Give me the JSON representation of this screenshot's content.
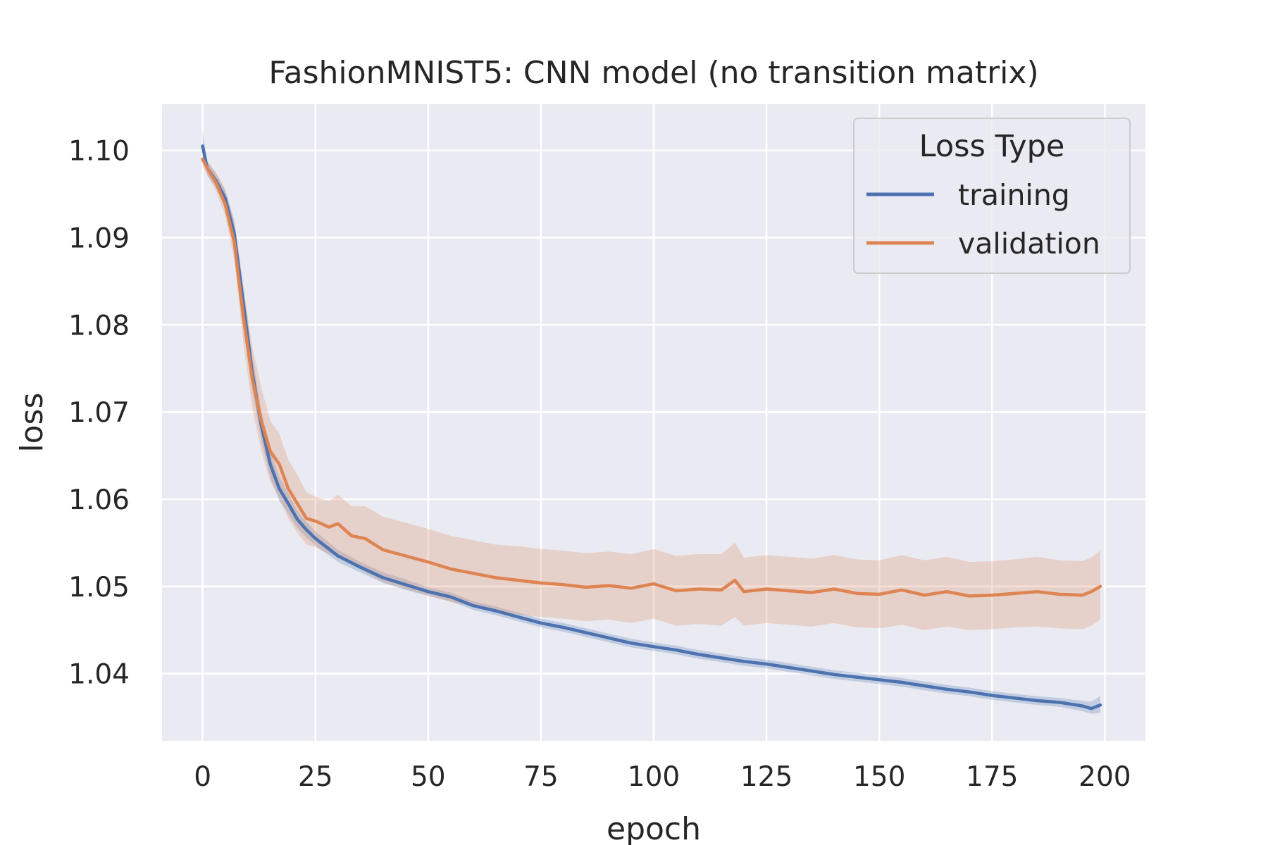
{
  "chart_data": {
    "type": "line",
    "title": "FashionMNIST5: CNN model (no transition matrix)",
    "xlabel": "epoch",
    "ylabel": "loss",
    "xlim": [
      -9,
      209
    ],
    "ylim": [
      1.0323,
      1.1053
    ],
    "xticks": [
      0,
      25,
      50,
      75,
      100,
      125,
      150,
      175,
      200
    ],
    "yticks": [
      1.04,
      1.05,
      1.06,
      1.07,
      1.08,
      1.09,
      1.1
    ],
    "ytick_labels": [
      "1.04",
      "1.05",
      "1.06",
      "1.07",
      "1.08",
      "1.09",
      "1.10"
    ],
    "grid": true,
    "legend": {
      "title": "Loss Type",
      "position": "top-right",
      "entries": [
        "training",
        "validation"
      ]
    },
    "series": [
      {
        "name": "training",
        "color": "#4c72b0",
        "x": [
          0,
          1,
          3,
          5,
          7,
          9,
          11,
          13,
          15,
          17,
          19,
          21,
          23,
          25,
          30,
          35,
          40,
          45,
          50,
          55,
          60,
          65,
          70,
          75,
          80,
          85,
          90,
          95,
          100,
          105,
          110,
          115,
          120,
          125,
          130,
          135,
          140,
          145,
          150,
          155,
          160,
          165,
          170,
          175,
          180,
          185,
          190,
          195,
          197,
          199
        ],
        "y": [
          1.1005,
          1.098,
          1.0965,
          1.0945,
          1.0905,
          1.0825,
          1.0745,
          1.0685,
          1.064,
          1.0612,
          1.0595,
          1.0577,
          1.0565,
          1.0555,
          1.0535,
          1.0522,
          1.051,
          1.0502,
          1.0494,
          1.0488,
          1.0478,
          1.0472,
          1.0465,
          1.0458,
          1.0453,
          1.0447,
          1.0441,
          1.0435,
          1.0431,
          1.0427,
          1.0422,
          1.0418,
          1.0414,
          1.0411,
          1.0407,
          1.0403,
          1.0399,
          1.0396,
          1.0393,
          1.039,
          1.0386,
          1.0382,
          1.0379,
          1.0375,
          1.0372,
          1.0369,
          1.0367,
          1.0363,
          1.036,
          1.0364
        ],
        "band_low": [
          1.0995,
          1.0972,
          1.0957,
          1.0935,
          1.089,
          1.0805,
          1.0725,
          1.0668,
          1.0625,
          1.0598,
          1.0583,
          1.0567,
          1.0556,
          1.0547,
          1.0528,
          1.0516,
          1.0504,
          1.0496,
          1.0489,
          1.0483,
          1.0473,
          1.0467,
          1.046,
          1.0453,
          1.0448,
          1.0442,
          1.0436,
          1.043,
          1.0426,
          1.0422,
          1.0417,
          1.0413,
          1.0409,
          1.0406,
          1.0402,
          1.0398,
          1.0394,
          1.0391,
          1.0388,
          1.0385,
          1.0381,
          1.0377,
          1.0374,
          1.037,
          1.0367,
          1.0364,
          1.0362,
          1.0357,
          1.0354,
          1.0355
        ],
        "band_high": [
          1.1022,
          1.0988,
          1.0973,
          1.0955,
          1.092,
          1.0845,
          1.0765,
          1.0702,
          1.0655,
          1.0626,
          1.0607,
          1.0587,
          1.0574,
          1.0563,
          1.0542,
          1.0528,
          1.0516,
          1.0508,
          1.0499,
          1.0493,
          1.0483,
          1.0477,
          1.047,
          1.0463,
          1.0458,
          1.0452,
          1.0446,
          1.044,
          1.0436,
          1.0432,
          1.0427,
          1.0423,
          1.0419,
          1.0416,
          1.0412,
          1.0408,
          1.0404,
          1.0401,
          1.0398,
          1.0395,
          1.0391,
          1.0387,
          1.0384,
          1.038,
          1.0377,
          1.0374,
          1.0372,
          1.0369,
          1.0368,
          1.0374
        ]
      },
      {
        "name": "validation",
        "color": "#dd8452",
        "x": [
          0,
          1,
          3,
          5,
          7,
          9,
          11,
          13,
          15,
          17,
          19,
          21,
          23,
          25,
          28,
          30,
          33,
          36,
          40,
          45,
          50,
          55,
          60,
          65,
          70,
          75,
          80,
          85,
          90,
          95,
          100,
          105,
          110,
          115,
          118,
          120,
          125,
          130,
          135,
          140,
          145,
          150,
          155,
          160,
          165,
          170,
          175,
          180,
          185,
          190,
          195,
          197,
          199
        ],
        "y": [
          1.099,
          1.098,
          1.0963,
          1.0938,
          1.0895,
          1.081,
          1.0738,
          1.069,
          1.0655,
          1.064,
          1.0612,
          1.0595,
          1.0578,
          1.0575,
          1.0568,
          1.0572,
          1.0558,
          1.0555,
          1.0542,
          1.0535,
          1.0528,
          1.052,
          1.0515,
          1.051,
          1.0507,
          1.0504,
          1.0502,
          1.0499,
          1.0501,
          1.0498,
          1.0503,
          1.0495,
          1.0497,
          1.0496,
          1.0507,
          1.0494,
          1.0497,
          1.0495,
          1.0493,
          1.0497,
          1.0492,
          1.0491,
          1.0496,
          1.049,
          1.0494,
          1.0489,
          1.049,
          1.0492,
          1.0494,
          1.0491,
          1.049,
          1.0494,
          1.05
        ],
        "band_low": [
          1.0982,
          1.0972,
          1.0953,
          1.0925,
          1.0875,
          1.078,
          1.0705,
          1.0655,
          1.062,
          1.0602,
          1.0578,
          1.0562,
          1.0548,
          1.0545,
          1.0537,
          1.0535,
          1.0525,
          1.0517,
          1.0505,
          1.0497,
          1.049,
          1.0482,
          1.0477,
          1.0472,
          1.0468,
          1.0465,
          1.0463,
          1.046,
          1.0462,
          1.0458,
          1.0463,
          1.0455,
          1.0457,
          1.0455,
          1.0465,
          1.0455,
          1.0458,
          1.0456,
          1.0454,
          1.0458,
          1.0453,
          1.0452,
          1.0456,
          1.045,
          1.0454,
          1.045,
          1.0451,
          1.0453,
          1.0454,
          1.0452,
          1.0451,
          1.0455,
          1.0462
        ],
        "band_high": [
          1.0998,
          1.0988,
          1.0975,
          1.0955,
          1.0918,
          1.0845,
          1.0775,
          1.0728,
          1.069,
          1.0675,
          1.0645,
          1.0628,
          1.0608,
          1.0603,
          1.0598,
          1.0605,
          1.0592,
          1.0592,
          1.058,
          1.0573,
          1.0566,
          1.0558,
          1.0553,
          1.0548,
          1.0546,
          1.0543,
          1.0541,
          1.0538,
          1.054,
          1.0537,
          1.0543,
          1.0535,
          1.0537,
          1.0537,
          1.055,
          1.0533,
          1.0536,
          1.0534,
          1.0532,
          1.0536,
          1.0531,
          1.053,
          1.0536,
          1.053,
          1.0534,
          1.0528,
          1.0529,
          1.0531,
          1.0534,
          1.053,
          1.0529,
          1.0533,
          1.0541
        ]
      }
    ]
  }
}
